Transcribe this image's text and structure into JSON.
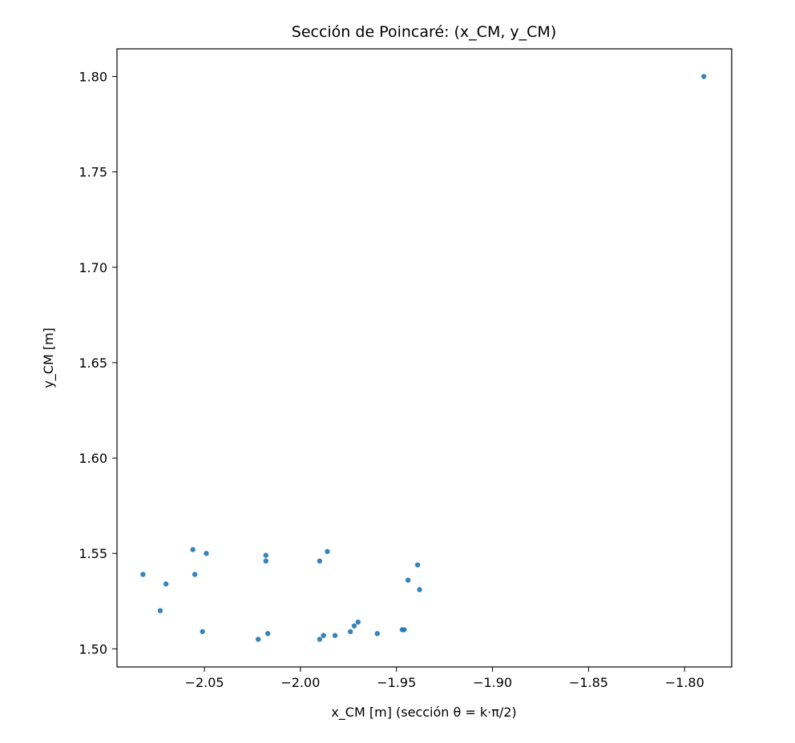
{
  "chart_data": {
    "type": "scatter",
    "title": "Sección de Poincaré: (x_CM, y_CM)",
    "xlabel": "x_CM [m]  (sección θ = k·π/2)",
    "ylabel": "y_CM [m]",
    "xlim": [
      -2.0955,
      -1.7755
    ],
    "ylim": [
      1.4905,
      1.8145
    ],
    "xticks": [
      -2.05,
      -2.0,
      -1.95,
      -1.9,
      -1.85,
      -1.8
    ],
    "xtick_labels": [
      "−2.05",
      "−2.00",
      "−1.95",
      "−1.90",
      "−1.85",
      "−1.80"
    ],
    "yticks": [
      1.5,
      1.55,
      1.6,
      1.65,
      1.7,
      1.75,
      1.8
    ],
    "ytick_labels": [
      "1.50",
      "1.55",
      "1.60",
      "1.65",
      "1.70",
      "1.75",
      "1.80"
    ],
    "grid": false,
    "marker_color": "#1f77b4",
    "series": [
      {
        "points": [
          [
            -1.79,
            1.8
          ],
          [
            -2.082,
            1.539
          ],
          [
            -2.07,
            1.534
          ],
          [
            -2.073,
            1.52
          ],
          [
            -2.056,
            1.552
          ],
          [
            -2.049,
            1.55
          ],
          [
            -2.055,
            1.539
          ],
          [
            -2.051,
            1.509
          ],
          [
            -2.018,
            1.549
          ],
          [
            -2.018,
            1.546
          ],
          [
            -2.022,
            1.505
          ],
          [
            -2.017,
            1.508
          ],
          [
            -1.986,
            1.551
          ],
          [
            -1.99,
            1.546
          ],
          [
            -1.99,
            1.505
          ],
          [
            -1.988,
            1.507
          ],
          [
            -1.982,
            1.507
          ],
          [
            -1.974,
            1.509
          ],
          [
            -1.972,
            1.512
          ],
          [
            -1.97,
            1.514
          ],
          [
            -1.96,
            1.508
          ],
          [
            -1.947,
            1.51
          ],
          [
            -1.946,
            1.51
          ],
          [
            -1.944,
            1.536
          ],
          [
            -1.939,
            1.544
          ],
          [
            -1.938,
            1.531
          ]
        ]
      }
    ]
  }
}
